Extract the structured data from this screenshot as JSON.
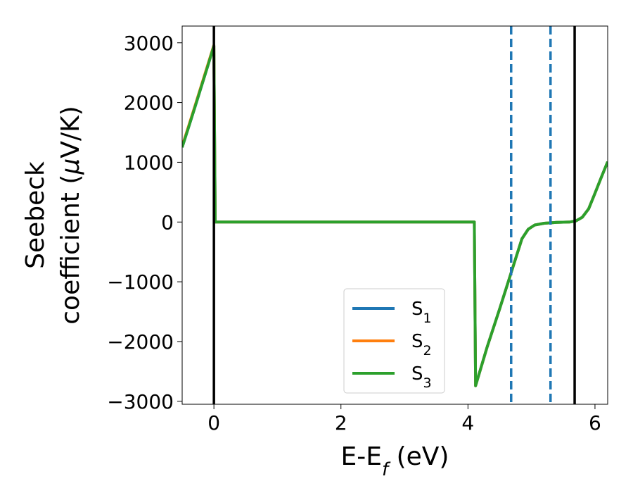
{
  "chart_data": {
    "type": "line",
    "xlabel": "E-E",
    "xlabel_sub": "f",
    "xlabel_unit": " (eV)",
    "ylabel_line1": "Seebeck",
    "ylabel_line2_pre": "coefficient  (",
    "ylabel_mu": "μ",
    "ylabel_line2_post": "V/K)",
    "xlim": [
      -0.5,
      6.2
    ],
    "ylim": [
      -3050,
      3280
    ],
    "xticks": [
      0,
      2,
      4,
      6
    ],
    "xtick_labels": [
      "0",
      "2",
      "4",
      "6"
    ],
    "yticks": [
      -3000,
      -2000,
      -1000,
      0,
      1000,
      2000,
      3000
    ],
    "ytick_labels": [
      "−3000",
      "−2000",
      "−1000",
      "0",
      "1000",
      "2000",
      "3000"
    ],
    "vlines_solid": [
      0.0,
      5.68
    ],
    "vlines_dashed": [
      4.68,
      5.3
    ],
    "solid_line_color": "#000000",
    "dashed_line_color": "#1f77b4",
    "legend_position": "lower center",
    "series": [
      {
        "name": "S",
        "sub": "1",
        "color": "#1f77b4",
        "x": [
          -0.5,
          -0.4,
          -0.3,
          -0.2,
          -0.1,
          0.0,
          0.02,
          0.5,
          1.0,
          2.0,
          3.0,
          4.0,
          4.1,
          4.12,
          4.3,
          4.5,
          4.7,
          4.85,
          4.95,
          5.05,
          5.2,
          5.4,
          5.6,
          5.7,
          5.8,
          5.9,
          6.0,
          6.1,
          6.2
        ],
        "y": [
          1250,
          1580,
          1920,
          2260,
          2600,
          2950,
          0,
          0,
          0,
          0,
          0,
          0,
          0,
          -2740,
          -2100,
          -1450,
          -780,
          -280,
          -120,
          -50,
          -20,
          -5,
          0,
          20,
          80,
          220,
          480,
          750,
          1010
        ]
      },
      {
        "name": "S",
        "sub": "2",
        "color": "#ff7f0e",
        "x": [
          -0.5,
          -0.4,
          -0.3,
          -0.2,
          -0.1,
          0.0,
          0.02,
          0.5,
          1.0,
          2.0,
          3.0,
          4.0,
          4.1,
          4.12,
          4.3,
          4.5,
          4.7,
          4.85,
          4.95,
          5.05,
          5.2,
          5.4,
          5.6,
          5.7,
          5.8,
          5.9,
          6.0,
          6.1,
          6.2
        ],
        "y": [
          1270,
          1600,
          1940,
          2280,
          2620,
          2960,
          0,
          0,
          0,
          0,
          0,
          0,
          0,
          -2740,
          -2100,
          -1450,
          -780,
          -280,
          -120,
          -50,
          -20,
          -5,
          0,
          20,
          80,
          220,
          480,
          750,
          1010
        ]
      },
      {
        "name": "S",
        "sub": "3",
        "color": "#2ca02c",
        "x": [
          -0.5,
          -0.4,
          -0.3,
          -0.2,
          -0.1,
          0.0,
          0.02,
          0.5,
          1.0,
          2.0,
          3.0,
          4.0,
          4.1,
          4.12,
          4.3,
          4.5,
          4.7,
          4.85,
          4.95,
          5.05,
          5.2,
          5.4,
          5.6,
          5.7,
          5.8,
          5.9,
          6.0,
          6.1,
          6.2
        ],
        "y": [
          1250,
          1580,
          1920,
          2260,
          2600,
          2950,
          0,
          0,
          0,
          0,
          0,
          0,
          0,
          -2740,
          -2100,
          -1450,
          -780,
          -280,
          -120,
          -50,
          -20,
          -5,
          0,
          20,
          80,
          220,
          480,
          750,
          1010
        ]
      }
    ]
  }
}
